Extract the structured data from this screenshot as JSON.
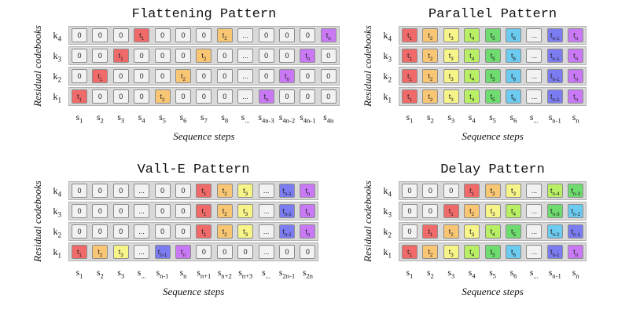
{
  "colors": {
    "blank": "#f2f2f2",
    "row_bg": "#d9d9d9",
    "c1": "#f06a6a",
    "c2": "#f9c674",
    "c3": "#f7f589",
    "c4": "#b9ef65",
    "c5": "#6fdc6f",
    "c6": "#6ccbf0",
    "c7": "#7c7cf2",
    "c8": "#c979f5"
  },
  "panels": [
    {
      "title": "Flattening Pattern",
      "ylabel": "Residual codebooks",
      "xlabel": "Sequence steps",
      "row_labels": [
        "k4",
        "k3",
        "k2",
        "k1"
      ],
      "col_labels": [
        "s1",
        "s2",
        "s3",
        "s4",
        "s5",
        "s6",
        "s7",
        "s8",
        "s...",
        "s4n-3",
        "s4n-2",
        "s4n-1",
        "s4n"
      ],
      "rows": [
        [
          "0",
          "0",
          "0",
          "t1",
          "0",
          "0",
          "0",
          "t2",
          "...",
          "0",
          "0",
          "0",
          "tn"
        ],
        [
          "0",
          "0",
          "t1",
          "0",
          "0",
          "0",
          "t2",
          "0",
          "...",
          "0",
          "0",
          "tn",
          "0"
        ],
        [
          "0",
          "t1",
          "0",
          "0",
          "0",
          "t2",
          "0",
          "0",
          "...",
          "0",
          "tn",
          "0",
          "0"
        ],
        [
          "t1",
          "0",
          "0",
          "0",
          "t2",
          "0",
          "0",
          "0",
          "...",
          "tn",
          "0",
          "0",
          "0"
        ]
      ],
      "row_colors": [
        [
          "blank",
          "blank",
          "blank",
          "c1",
          "blank",
          "blank",
          "blank",
          "c2",
          "blank",
          "blank",
          "blank",
          "blank",
          "c8"
        ],
        [
          "blank",
          "blank",
          "c1",
          "blank",
          "blank",
          "blank",
          "c2",
          "blank",
          "blank",
          "blank",
          "blank",
          "c8",
          "blank"
        ],
        [
          "blank",
          "c1",
          "blank",
          "blank",
          "blank",
          "c2",
          "blank",
          "blank",
          "blank",
          "blank",
          "c8",
          "blank",
          "blank"
        ],
        [
          "c1",
          "blank",
          "blank",
          "blank",
          "c2",
          "blank",
          "blank",
          "blank",
          "blank",
          "c8",
          "blank",
          "blank",
          "blank"
        ]
      ]
    },
    {
      "title": "Parallel Pattern",
      "ylabel": "Residual codebooks",
      "xlabel": "Sequence steps",
      "row_labels": [
        "k4",
        "k3",
        "k2",
        "k1"
      ],
      "col_labels": [
        "s1",
        "s2",
        "s3",
        "s4",
        "s5",
        "s6",
        "s...",
        "sn-1",
        "sn"
      ],
      "rows": [
        [
          "t1",
          "t2",
          "t3",
          "t4",
          "t5",
          "t6",
          "...",
          "tn-1",
          "tn"
        ],
        [
          "t1",
          "t2",
          "t3",
          "t4",
          "t5",
          "t6",
          "...",
          "tn-1",
          "tn"
        ],
        [
          "t1",
          "t2",
          "t3",
          "t4",
          "t5",
          "t6",
          "...",
          "tn-1",
          "tn"
        ],
        [
          "t1",
          "t2",
          "t3",
          "t4",
          "t5",
          "t6",
          "...",
          "tn-1",
          "tn"
        ]
      ],
      "row_colors": [
        [
          "c1",
          "c2",
          "c3",
          "c4",
          "c5",
          "c6",
          "blank",
          "c7",
          "c8"
        ],
        [
          "c1",
          "c2",
          "c3",
          "c4",
          "c5",
          "c6",
          "blank",
          "c7",
          "c8"
        ],
        [
          "c1",
          "c2",
          "c3",
          "c4",
          "c5",
          "c6",
          "blank",
          "c7",
          "c8"
        ],
        [
          "c1",
          "c2",
          "c3",
          "c4",
          "c5",
          "c6",
          "blank",
          "c7",
          "c8"
        ]
      ]
    },
    {
      "title": "Vall-E Pattern",
      "ylabel": "Residual codebooks",
      "xlabel": "Sequence steps",
      "row_labels": [
        "k4",
        "k3",
        "k2",
        "k1"
      ],
      "col_labels": [
        "s1",
        "s2",
        "s3",
        "s...",
        "sn-1",
        "sn",
        "sn+1",
        "sn+2",
        "sn+3",
        "s...",
        "s2n-1",
        "s2n"
      ],
      "rows": [
        [
          "0",
          "0",
          "0",
          "...",
          "0",
          "0",
          "t1",
          "t2",
          "t3",
          "...",
          "tn-1",
          "tn"
        ],
        [
          "0",
          "0",
          "0",
          "...",
          "0",
          "0",
          "t1",
          "t2",
          "t3",
          "...",
          "tn-1",
          "tn"
        ],
        [
          "0",
          "0",
          "0",
          "...",
          "0",
          "0",
          "t1",
          "t2",
          "t3",
          "...",
          "tn-1",
          "tn"
        ],
        [
          "t1",
          "t2",
          "t3",
          "...",
          "tn-1",
          "tn",
          "0",
          "0",
          "0",
          "...",
          "0",
          "0"
        ]
      ],
      "row_colors": [
        [
          "blank",
          "blank",
          "blank",
          "blank",
          "blank",
          "blank",
          "c1",
          "c2",
          "c3",
          "blank",
          "c7",
          "c8"
        ],
        [
          "blank",
          "blank",
          "blank",
          "blank",
          "blank",
          "blank",
          "c1",
          "c2",
          "c3",
          "blank",
          "c7",
          "c8"
        ],
        [
          "blank",
          "blank",
          "blank",
          "blank",
          "blank",
          "blank",
          "c1",
          "c2",
          "c3",
          "blank",
          "c7",
          "c8"
        ],
        [
          "c1",
          "c2",
          "c3",
          "blank",
          "c7",
          "c8",
          "blank",
          "blank",
          "blank",
          "blank",
          "blank",
          "blank"
        ]
      ]
    },
    {
      "title": "Delay Pattern",
      "ylabel": "Residual codebooks",
      "xlabel": "Sequence steps",
      "row_labels": [
        "k4",
        "k3",
        "k2",
        "k1"
      ],
      "col_labels": [
        "s1",
        "s2",
        "s3",
        "s4",
        "s5",
        "s6",
        "s...",
        "sn-1",
        "sn"
      ],
      "rows": [
        [
          "0",
          "0",
          "0",
          "t1",
          "t2",
          "t3",
          "...",
          "tn-4",
          "tn-3"
        ],
        [
          "0",
          "0",
          "t1",
          "t2",
          "t3",
          "t4",
          "...",
          "tn-3",
          "tn-2"
        ],
        [
          "0",
          "t1",
          "t2",
          "t3",
          "t4",
          "t5",
          "...",
          "tn-2",
          "tn-1"
        ],
        [
          "t1",
          "t2",
          "t3",
          "t4",
          "t5",
          "t6",
          "...",
          "tn-1",
          "tn"
        ]
      ],
      "row_colors": [
        [
          "blank",
          "blank",
          "blank",
          "c1",
          "c2",
          "c3",
          "blank",
          "c4",
          "c5"
        ],
        [
          "blank",
          "blank",
          "c1",
          "c2",
          "c3",
          "c4",
          "blank",
          "c5",
          "c6"
        ],
        [
          "blank",
          "c1",
          "c2",
          "c3",
          "c4",
          "c5",
          "blank",
          "c6",
          "c7"
        ],
        [
          "c1",
          "c2",
          "c3",
          "c4",
          "c5",
          "c6",
          "blank",
          "c7",
          "c8"
        ]
      ]
    }
  ]
}
